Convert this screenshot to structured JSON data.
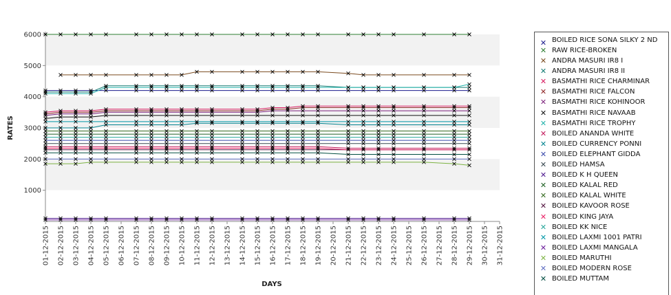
{
  "chart_data": {
    "type": "line",
    "title": "",
    "xlabel": "DAYS",
    "ylabel": "RATES",
    "ylim": [
      0,
      6000
    ],
    "yticks": [
      1000,
      2000,
      3000,
      4000,
      5000,
      6000
    ],
    "grid": "alternating horizontal bands",
    "legend_position": "right",
    "x_tick_labels": [
      "01-12-2015",
      "02-12-2015",
      "03-12-2015",
      "04-12-2015",
      "05-12-2015",
      "06-12-2015",
      "07-12-2015",
      "08-12-2015",
      "09-12-2015",
      "10-12-2015",
      "11-12-2015",
      "12-12-2015",
      "13-12-2015",
      "14-12-2015",
      "15-12-2015",
      "16-12-2015",
      "17-12-2015",
      "18-12-2015",
      "19-12-2015",
      "20-12-2015",
      "21-12-2015",
      "22-12-2015",
      "23-12-2015",
      "24-12-2015",
      "25-12-2015",
      "26-12-2015",
      "27-12-2015",
      "28-12-2015",
      "29-12-2015",
      "30-12-2015",
      "31-12-2015"
    ],
    "x": [
      "01-12-2015",
      "02-12-2015",
      "03-12-2015",
      "04-12-2015",
      "05-12-2015",
      "07-12-2015",
      "08-12-2015",
      "09-12-2015",
      "10-12-2015",
      "11-12-2015",
      "12-12-2015",
      "14-12-2015",
      "15-12-2015",
      "16-12-2015",
      "17-12-2015",
      "18-12-2015",
      "19-12-2015",
      "21-12-2015",
      "22-12-2015",
      "23-12-2015",
      "24-12-2015",
      "26-12-2015",
      "28-12-2015",
      "29-12-2015"
    ],
    "series": [
      {
        "name": "BOILED RICE SONA SILKY 2 ND",
        "color": "#1a1a8c",
        "values": [
          4200,
          4200,
          4200,
          4200,
          4200,
          4200,
          4200,
          4200,
          4200,
          4200,
          4200,
          4200,
          4200,
          4200,
          4200,
          4200,
          4200,
          4200,
          4200,
          4200,
          4200,
          4200,
          4200,
          4200
        ]
      },
      {
        "name": "RAW RICE-BROKEN",
        "color": "#2e7d32",
        "values": [
          6000,
          6000,
          6000,
          6000,
          6000,
          6000,
          6000,
          6000,
          6000,
          6000,
          6000,
          6000,
          6000,
          6000,
          6000,
          6000,
          6000,
          6000,
          6000,
          6000,
          6000,
          6000,
          6000,
          6000
        ]
      },
      {
        "name": "ANDRA MASURI IR8 I",
        "color": "#7a4a1e",
        "values": [
          null,
          4700,
          4700,
          4700,
          4700,
          4700,
          4700,
          4700,
          4700,
          4800,
          4800,
          4800,
          4800,
          4800,
          4800,
          4800,
          4800,
          4750,
          4700,
          4700,
          4700,
          4700,
          4700,
          4700
        ]
      },
      {
        "name": "ANDRA MASURI IR8 II",
        "color": "#127a72",
        "values": [
          4150,
          4150,
          4150,
          4150,
          4350,
          4350,
          4350,
          4350,
          4350,
          4350,
          4350,
          4350,
          4350,
          4350,
          4350,
          4350,
          4350,
          4300,
          4300,
          4300,
          4300,
          4300,
          4300,
          4300
        ]
      },
      {
        "name": "BASMATHI RICE CHARMINAR",
        "color": "#d81b60",
        "values": [
          3500,
          3550,
          3550,
          3550,
          3600,
          3600,
          3600,
          3600,
          3600,
          3600,
          3600,
          3600,
          3600,
          3650,
          3650,
          3700,
          3700,
          3700,
          3700,
          3700,
          3700,
          3700,
          3700,
          3700
        ]
      },
      {
        "name": "BASMATHI RICE FALCON",
        "color": "#8e2424",
        "values": [
          3450,
          3500,
          3500,
          3500,
          3550,
          3550,
          3550,
          3550,
          3550,
          3550,
          3550,
          3550,
          3550,
          3600,
          3600,
          3650,
          3650,
          3650,
          3650,
          3650,
          3650,
          3650,
          3650,
          3650
        ]
      },
      {
        "name": "BASMATHI RICE KOHINOOR",
        "color": "#7b1f7b",
        "values": [
          3400,
          3450,
          3450,
          3450,
          3500,
          3500,
          3500,
          3500,
          3500,
          3500,
          3500,
          3500,
          3500,
          3550,
          3550,
          3550,
          3550,
          3550,
          3550,
          3550,
          3550,
          3550,
          3550,
          3550
        ]
      },
      {
        "name": "BASMATHI RICE NAVAAB",
        "color": "#111111",
        "values": [
          3300,
          3350,
          3350,
          3350,
          3400,
          3400,
          3400,
          3400,
          3400,
          3400,
          3400,
          3400,
          3400,
          3400,
          3400,
          3400,
          3400,
          3400,
          3400,
          3400,
          3400,
          3400,
          3400,
          3400
        ]
      },
      {
        "name": "BASMATHI RICE TROPHY",
        "color": "#20b2aa",
        "values": [
          4100,
          4100,
          4100,
          4100,
          4300,
          4300,
          4300,
          4300,
          4300,
          4300,
          4300,
          4300,
          4300,
          4300,
          4300,
          4300,
          4300,
          4300,
          4300,
          4300,
          4300,
          4300,
          4300,
          4400
        ]
      },
      {
        "name": "BOILED ANANDA WHITE",
        "color": "#c2185b",
        "values": [
          2400,
          2400,
          2400,
          2400,
          2400,
          2400,
          2400,
          2400,
          2400,
          2400,
          2400,
          2400,
          2400,
          2400,
          2400,
          2400,
          2400,
          2350,
          2350,
          2350,
          2350,
          2350,
          2350,
          2350
        ]
      },
      {
        "name": "BOILED CURRENCY PONNI",
        "color": "#00838f",
        "values": [
          3000,
          3000,
          3000,
          3000,
          3100,
          3100,
          3100,
          3100,
          3100,
          3150,
          3150,
          3150,
          3150,
          3150,
          3150,
          3150,
          3150,
          3100,
          3100,
          3100,
          3100,
          3100,
          3100,
          3100
        ]
      },
      {
        "name": "BOILED ELEPHANT GIDDA",
        "color": "#3949ab",
        "values": [
          2600,
          2600,
          2600,
          2600,
          2600,
          2600,
          2600,
          2600,
          2600,
          2600,
          2600,
          2600,
          2600,
          2600,
          2600,
          2600,
          2600,
          2600,
          2600,
          2600,
          2600,
          2600,
          2600,
          2600
        ]
      },
      {
        "name": "BOILED HAMSA",
        "color": "#37474f",
        "values": [
          2500,
          2500,
          2500,
          2500,
          2500,
          2500,
          2500,
          2500,
          2500,
          2500,
          2500,
          2500,
          2500,
          2500,
          2500,
          2500,
          2500,
          2500,
          2500,
          2500,
          2500,
          2500,
          2500,
          2500
        ]
      },
      {
        "name": "BOILED K H QUEEN",
        "color": "#4a148c",
        "values": [
          100,
          100,
          100,
          100,
          100,
          100,
          100,
          100,
          100,
          100,
          100,
          100,
          100,
          100,
          100,
          100,
          100,
          100,
          100,
          100,
          100,
          100,
          100,
          100
        ]
      },
      {
        "name": "BOILED KALAL RED",
        "color": "#1b5e20",
        "values": [
          2800,
          2800,
          2800,
          2800,
          2800,
          2800,
          2800,
          2800,
          2800,
          2800,
          2800,
          2800,
          2800,
          2800,
          2800,
          2800,
          2800,
          2800,
          2800,
          2800,
          2800,
          2800,
          2800,
          2800
        ]
      },
      {
        "name": "BOILED KALAL WHITE",
        "color": "#33691e",
        "values": [
          2900,
          2900,
          2900,
          2900,
          2900,
          2900,
          2900,
          2900,
          2900,
          2900,
          2900,
          2900,
          2900,
          2900,
          2900,
          2900,
          2900,
          2900,
          2900,
          2900,
          2900,
          2900,
          2900,
          2900
        ]
      },
      {
        "name": "BOILED KAVOOR ROSE",
        "color": "#4e0d3a",
        "values": [
          2300,
          2300,
          2300,
          2300,
          2300,
          2300,
          2300,
          2300,
          2300,
          2300,
          2300,
          2300,
          2300,
          2300,
          2300,
          2300,
          2300,
          2300,
          2300,
          2300,
          2300,
          2300,
          2300,
          2300
        ]
      },
      {
        "name": "BOILED KING JAYA",
        "color": "#e91e63",
        "values": [
          2350,
          2350,
          2350,
          2350,
          2350,
          2350,
          2350,
          2350,
          2350,
          2350,
          2350,
          2350,
          2350,
          2350,
          2350,
          2350,
          2350,
          2300,
          2300,
          2300,
          2300,
          2300,
          2300,
          2300
        ]
      },
      {
        "name": "BOILED KK NICE",
        "color": "#26a69a",
        "values": [
          2700,
          2700,
          2700,
          2700,
          2700,
          2700,
          2700,
          2700,
          2700,
          2700,
          2700,
          2700,
          2700,
          2700,
          2700,
          2700,
          2700,
          2700,
          2700,
          2700,
          2700,
          2700,
          2700,
          2700
        ]
      },
      {
        "name": "BOILED LAXMI 1001 PATRI",
        "color": "#0097a7",
        "values": [
          3200,
          3200,
          3200,
          3200,
          3200,
          3200,
          3200,
          3200,
          3200,
          3200,
          3200,
          3200,
          3200,
          3200,
          3200,
          3200,
          3200,
          3200,
          3200,
          3200,
          3200,
          3200,
          3200,
          3200
        ]
      },
      {
        "name": "BOILED LAXMI MANGALA",
        "color": "#6a1b9a",
        "values": [
          50,
          50,
          50,
          50,
          50,
          50,
          50,
          50,
          50,
          50,
          50,
          50,
          50,
          50,
          50,
          50,
          50,
          50,
          50,
          50,
          50,
          50,
          50,
          50
        ]
      },
      {
        "name": "BOILED MARUTHI",
        "color": "#7cb342",
        "values": [
          1850,
          1850,
          1850,
          1900,
          1900,
          1900,
          1900,
          1900,
          1900,
          1900,
          1900,
          1900,
          1900,
          1900,
          1900,
          1900,
          1900,
          1900,
          1900,
          1900,
          1900,
          1900,
          1850,
          1800
        ]
      },
      {
        "name": "BOILED MODERN ROSE",
        "color": "#5c6bc0",
        "values": [
          2000,
          2000,
          2000,
          2000,
          2000,
          2000,
          2000,
          2000,
          2000,
          2000,
          2000,
          2000,
          2000,
          2000,
          2000,
          2000,
          2000,
          2000,
          2000,
          2000,
          2000,
          2000,
          2000,
          2000
        ]
      },
      {
        "name": "BOILED MUTTAM",
        "color": "#004d40",
        "values": [
          2200,
          2200,
          2200,
          2200,
          2200,
          2200,
          2200,
          2200,
          2200,
          2200,
          2200,
          2200,
          2200,
          2200,
          2200,
          2200,
          2200,
          2150,
          2150,
          2150,
          2150,
          2150,
          2150,
          2150
        ]
      }
    ]
  }
}
